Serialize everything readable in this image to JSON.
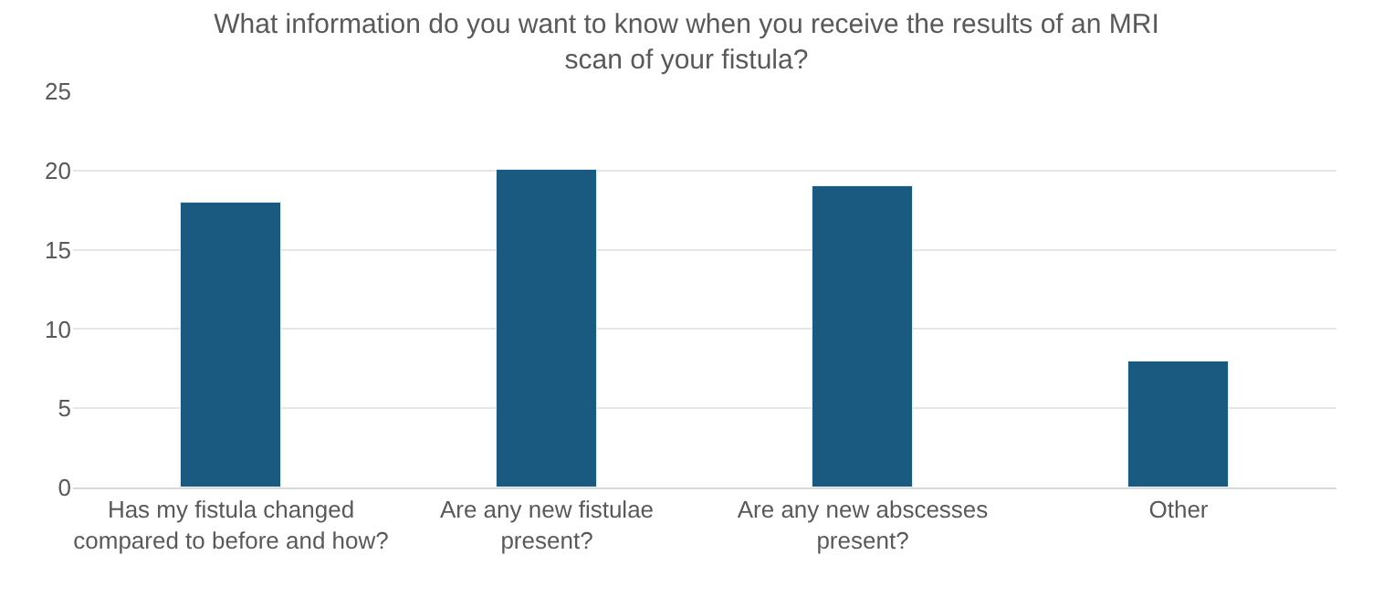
{
  "chart_data": {
    "type": "bar",
    "title": "What information do you want to know when you receive the results of an MRI scan of your fistula?",
    "categories": [
      "Has my fistula changed compared to before and how?",
      "Are any new fistulae present?",
      "Are any new abscesses present?",
      "Other"
    ],
    "values": [
      18,
      20,
      19,
      8
    ],
    "color": "#1a5a80",
    "ylim": [
      0,
      25
    ],
    "yticks": [
      0,
      5,
      10,
      15,
      20,
      25
    ],
    "grid": "y"
  }
}
